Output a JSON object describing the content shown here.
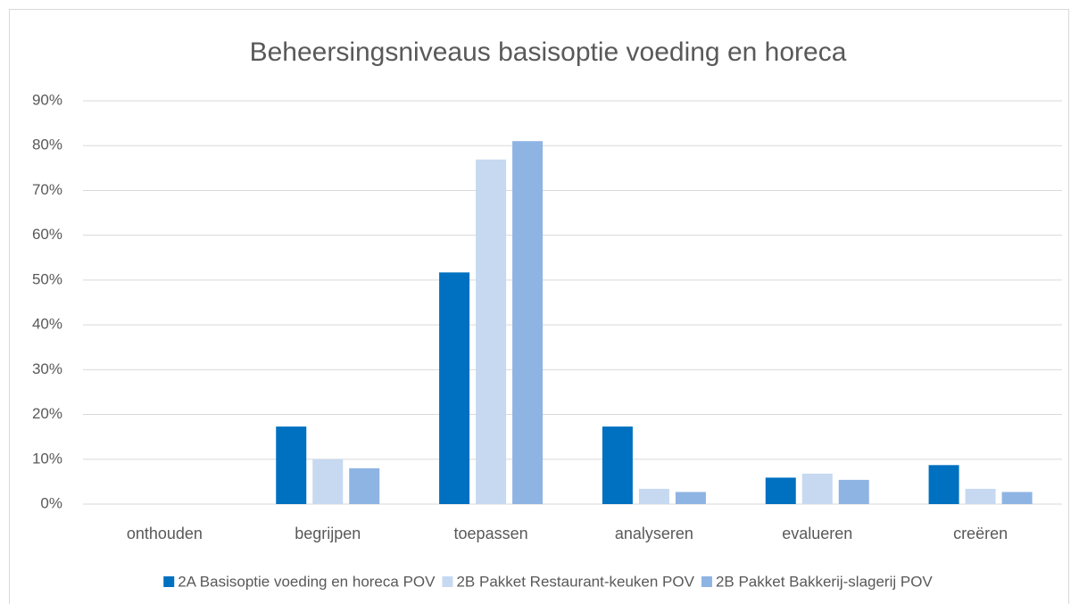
{
  "chart_data": {
    "type": "bar",
    "title": "Beheersingsniveaus basisoptie voeding en horeca",
    "categories": [
      "onthouden",
      "begrijpen",
      "toepassen",
      "analyseren",
      "evalueren",
      "creëren"
    ],
    "series": [
      {
        "name": "2A Basisoptie voeding en horeca POV",
        "color": "#0070c0",
        "values": [
          0,
          17.3,
          51.7,
          17.3,
          5.9,
          8.7
        ]
      },
      {
        "name": "2B Pakket Restaurant-keuken POV",
        "color": "#c6d9f1",
        "values": [
          0,
          10,
          76.9,
          3.4,
          6.8,
          3.4
        ]
      },
      {
        "name": "2B Pakket Bakkerij-slagerij POV",
        "color": "#8eb4e3",
        "values": [
          0,
          8,
          81,
          2.7,
          5.4,
          2.7
        ]
      }
    ],
    "ylim": [
      0,
      90
    ],
    "yticks": [
      {
        "value": 0,
        "label": "0%"
      },
      {
        "value": 10,
        "label": "10%"
      },
      {
        "value": 20,
        "label": "20%"
      },
      {
        "value": 30,
        "label": "30%"
      },
      {
        "value": 40,
        "label": "40%"
      },
      {
        "value": 50,
        "label": "50%"
      },
      {
        "value": 60,
        "label": "60%"
      },
      {
        "value": 70,
        "label": "70%"
      },
      {
        "value": 80,
        "label": "80%"
      },
      {
        "value": 90,
        "label": "90%"
      }
    ],
    "grid": true,
    "legend": "bottom"
  }
}
